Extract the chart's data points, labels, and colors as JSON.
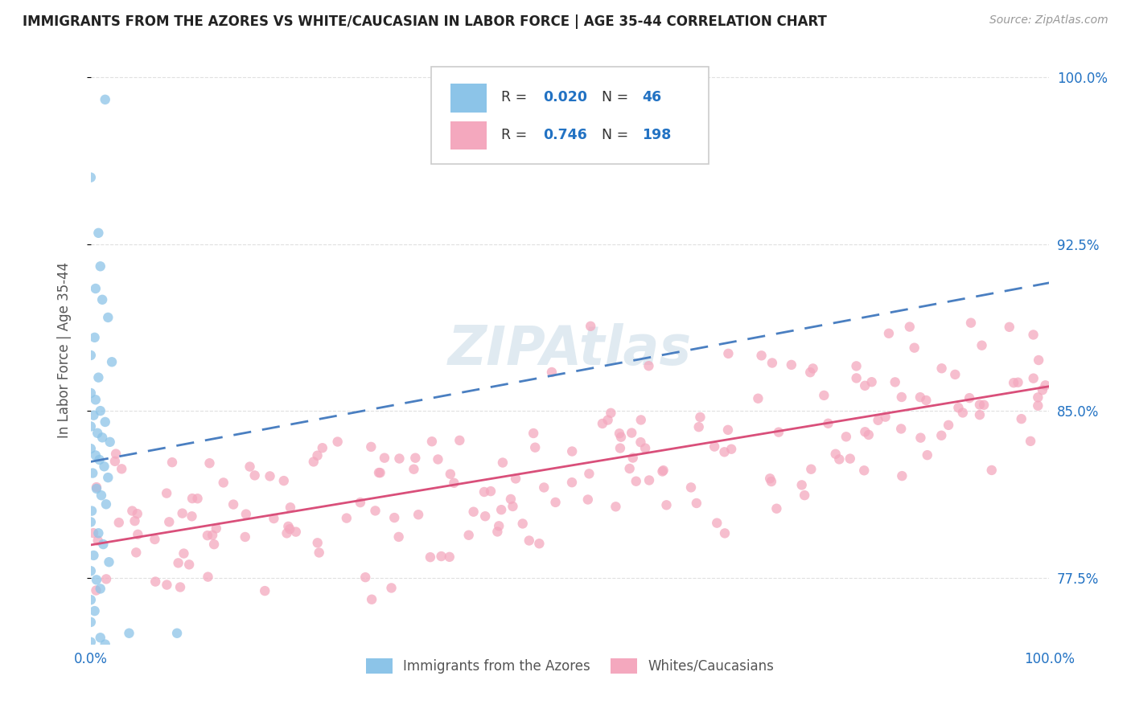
{
  "title": "IMMIGRANTS FROM THE AZORES VS WHITE/CAUCASIAN IN LABOR FORCE | AGE 35-44 CORRELATION CHART",
  "source": "Source: ZipAtlas.com",
  "ylabel": "In Labor Force | Age 35-44",
  "xlim": [
    0.0,
    1.0
  ],
  "ylim": [
    0.745,
    1.01
  ],
  "yticks": [
    0.775,
    0.85,
    0.925,
    1.0
  ],
  "ytick_labels": [
    "77.5%",
    "85.0%",
    "92.5%",
    "100.0%"
  ],
  "xtick_labels": [
    "0.0%",
    "100.0%"
  ],
  "xticks": [
    0.0,
    1.0
  ],
  "legend_label1": "Immigrants from the Azores",
  "legend_label2": "Whites/Caucasians",
  "color_blue": "#8cc4e8",
  "color_pink": "#f4a8be",
  "color_blue_text": "#2272c3",
  "color_pink_line": "#d94f7a",
  "color_blue_line": "#4a7fc1",
  "color_grid": "#e0e0e0",
  "watermark_color": "#ccdde8",
  "seed": 123
}
